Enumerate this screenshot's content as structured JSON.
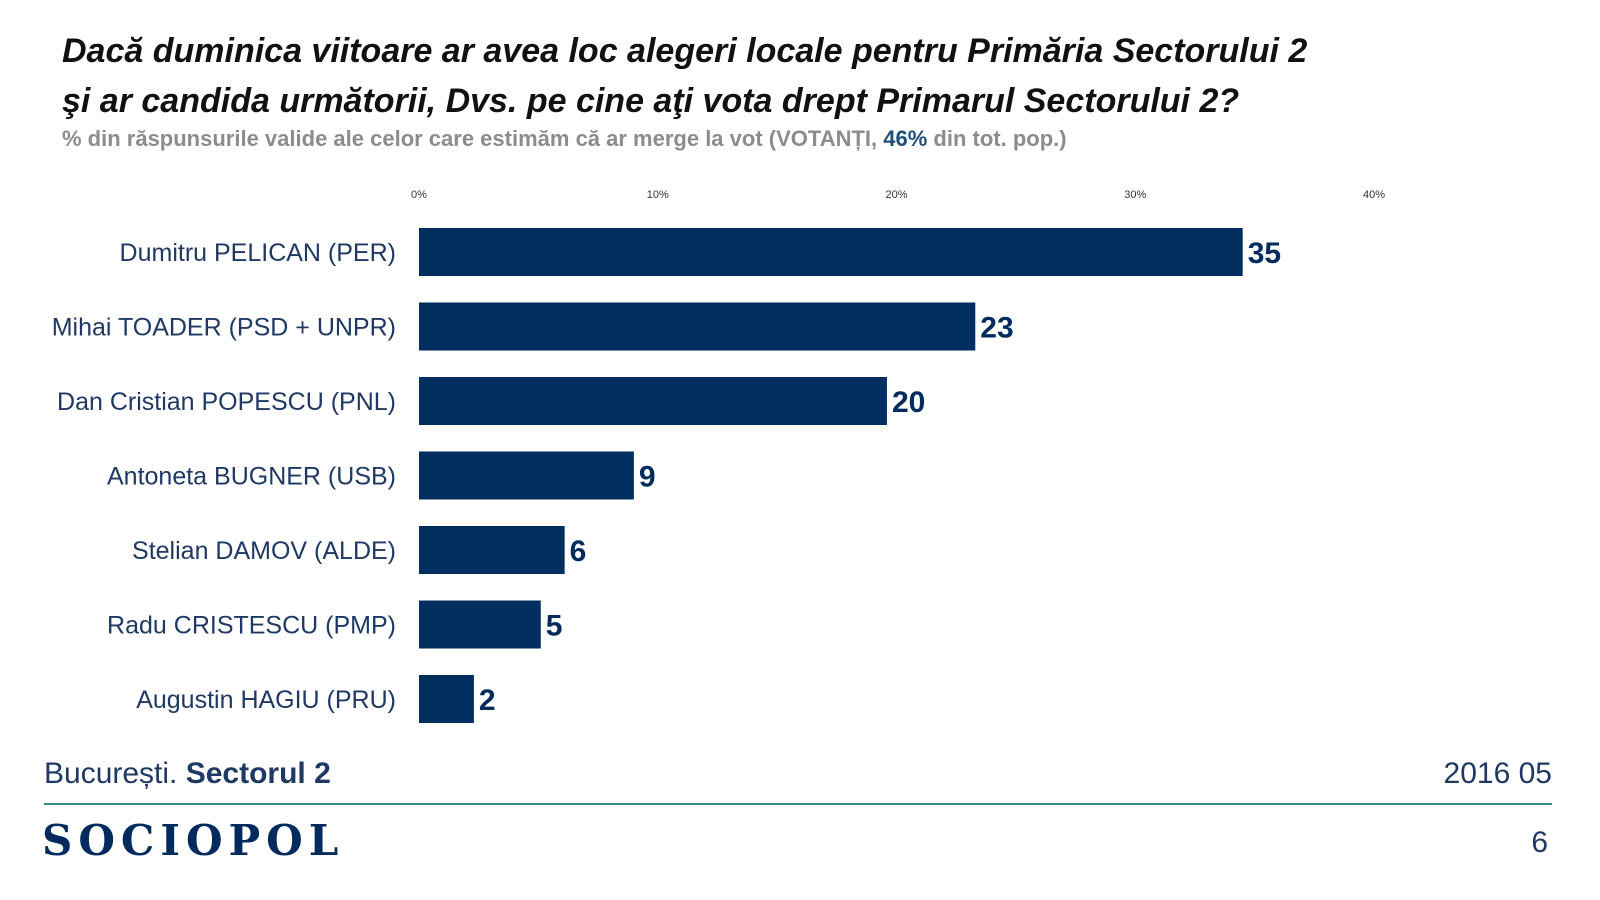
{
  "title": {
    "line1": "Dacă duminica viitoare ar avea loc alegeri locale pentru Primăria Sectorului 2",
    "line2": "şi ar candida următorii, Dvs. pe cine aţi vota drept Primarul Sectorului 2?"
  },
  "subtitle": {
    "prefix": "% din răspunsurile valide ale celor care estimăm că ar merge la vot (VOTANȚI, ",
    "highlight": "46%",
    "suffix": " din tot. pop.)"
  },
  "colors": {
    "bar": "#002f5f",
    "value_label": "#002b5c",
    "category_label": "#1f3864",
    "highlight": "#1f4e79",
    "rule": "#3a8c8c"
  },
  "chart_data": {
    "type": "bar",
    "orientation": "horizontal",
    "categories": [
      "Dumitru PELICAN (PER)",
      "Mihai TOADER (PSD + UNPR)",
      "Dan Cristian POPESCU (PNL)",
      "Antoneta BUGNER (USB)",
      "Stelian DAMOV (ALDE)",
      "Radu CRISTESCU (PMP)",
      "Augustin HAGIU (PRU)"
    ],
    "values": [
      35,
      23,
      20,
      9,
      6,
      5,
      2
    ],
    "bar_lengths": [
      34.5,
      23.3,
      19.6,
      9.0,
      6.1,
      5.1,
      2.3
    ],
    "xlim": [
      0,
      40
    ],
    "x_ticks": [
      0,
      10,
      20,
      30,
      40
    ],
    "x_tick_labels": [
      "0%",
      "10%",
      "20%",
      "30%",
      "40%"
    ],
    "axis_position": "top",
    "grid": false,
    "legend": false
  },
  "footer": {
    "location_prefix": "București. ",
    "location_bold": "Sectorul 2",
    "date": "2016 05",
    "logo": "SOCIOPOL",
    "page_number": "6"
  }
}
